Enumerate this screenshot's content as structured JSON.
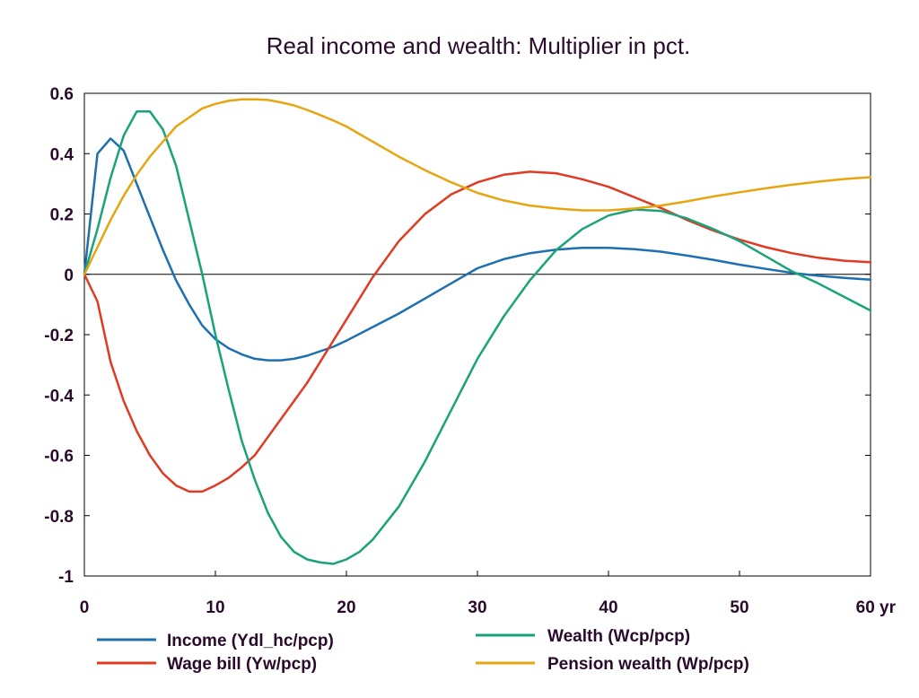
{
  "chart_data": {
    "type": "line",
    "title": "Real income and wealth: Multiplier in pct.",
    "xlabel": "",
    "ylabel": "",
    "x_unit_label": "yr",
    "xlim": [
      0,
      60
    ],
    "ylim": [
      -1,
      0.6
    ],
    "x_ticks": [
      0,
      10,
      20,
      30,
      40,
      50,
      60
    ],
    "x_tick_labels": [
      "0",
      "10",
      "20",
      "30",
      "40",
      "50",
      "60 yr"
    ],
    "y_ticks": [
      -1,
      -0.8,
      -0.6,
      -0.4,
      -0.2,
      0,
      0.2,
      0.4,
      0.6
    ],
    "y_tick_labels": [
      "-1",
      "-0.8",
      "-0.6",
      "-0.4",
      "-0.2",
      "0",
      "0.2",
      "0.4",
      "0.6"
    ],
    "grid": false,
    "zero_line": true,
    "legend_position": "bottom",
    "series": [
      {
        "name": "Income (Ydl_hc/pcp)",
        "color": "#1f6fb0",
        "points": [
          [
            0,
            0
          ],
          [
            1,
            0.4
          ],
          [
            2,
            0.45
          ],
          [
            3,
            0.41
          ],
          [
            4,
            0.3
          ],
          [
            5,
            0.19
          ],
          [
            6,
            0.08
          ],
          [
            7,
            -0.02
          ],
          [
            8,
            -0.1
          ],
          [
            9,
            -0.17
          ],
          [
            10,
            -0.215
          ],
          [
            11,
            -0.245
          ],
          [
            12,
            -0.265
          ],
          [
            13,
            -0.28
          ],
          [
            14,
            -0.285
          ],
          [
            15,
            -0.285
          ],
          [
            16,
            -0.28
          ],
          [
            17,
            -0.27
          ],
          [
            18,
            -0.255
          ],
          [
            19,
            -0.24
          ],
          [
            20,
            -0.22
          ],
          [
            22,
            -0.175
          ],
          [
            24,
            -0.13
          ],
          [
            26,
            -0.08
          ],
          [
            28,
            -0.03
          ],
          [
            30,
            0.02
          ],
          [
            32,
            0.05
          ],
          [
            34,
            0.07
          ],
          [
            36,
            0.082
          ],
          [
            38,
            0.088
          ],
          [
            40,
            0.088
          ],
          [
            42,
            0.083
          ],
          [
            44,
            0.075
          ],
          [
            46,
            0.062
          ],
          [
            48,
            0.048
          ],
          [
            50,
            0.032
          ],
          [
            52,
            0.018
          ],
          [
            54,
            0.005
          ],
          [
            56,
            -0.005
          ],
          [
            58,
            -0.012
          ],
          [
            60,
            -0.018
          ]
        ]
      },
      {
        "name": "Wage bill (Yw/pcp)",
        "color": "#e03a23",
        "points": [
          [
            0,
            0
          ],
          [
            1,
            -0.09
          ],
          [
            2,
            -0.29
          ],
          [
            3,
            -0.42
          ],
          [
            4,
            -0.52
          ],
          [
            5,
            -0.6
          ],
          [
            6,
            -0.66
          ],
          [
            7,
            -0.7
          ],
          [
            8,
            -0.72
          ],
          [
            9,
            -0.72
          ],
          [
            10,
            -0.7
          ],
          [
            11,
            -0.675
          ],
          [
            12,
            -0.64
          ],
          [
            13,
            -0.6
          ],
          [
            14,
            -0.54
          ],
          [
            15,
            -0.48
          ],
          [
            16,
            -0.42
          ],
          [
            17,
            -0.36
          ],
          [
            18,
            -0.29
          ],
          [
            19,
            -0.22
          ],
          [
            20,
            -0.15
          ],
          [
            22,
            -0.01
          ],
          [
            24,
            0.11
          ],
          [
            26,
            0.2
          ],
          [
            28,
            0.265
          ],
          [
            30,
            0.305
          ],
          [
            32,
            0.33
          ],
          [
            34,
            0.34
          ],
          [
            36,
            0.335
          ],
          [
            38,
            0.315
          ],
          [
            40,
            0.29
          ],
          [
            42,
            0.255
          ],
          [
            44,
            0.22
          ],
          [
            46,
            0.18
          ],
          [
            48,
            0.145
          ],
          [
            50,
            0.115
          ],
          [
            52,
            0.09
          ],
          [
            54,
            0.07
          ],
          [
            56,
            0.055
          ],
          [
            58,
            0.045
          ],
          [
            60,
            0.04
          ]
        ]
      },
      {
        "name": "Wealth (Wcp/pcp)",
        "color": "#1aa37a",
        "points": [
          [
            0,
            0
          ],
          [
            1,
            0.15
          ],
          [
            2,
            0.32
          ],
          [
            3,
            0.46
          ],
          [
            4,
            0.54
          ],
          [
            5,
            0.54
          ],
          [
            6,
            0.48
          ],
          [
            7,
            0.36
          ],
          [
            8,
            0.18
          ],
          [
            9,
            0.0
          ],
          [
            10,
            -0.2
          ],
          [
            11,
            -0.38
          ],
          [
            12,
            -0.55
          ],
          [
            13,
            -0.68
          ],
          [
            14,
            -0.79
          ],
          [
            15,
            -0.87
          ],
          [
            16,
            -0.92
          ],
          [
            17,
            -0.945
          ],
          [
            18,
            -0.955
          ],
          [
            19,
            -0.96
          ],
          [
            20,
            -0.945
          ],
          [
            21,
            -0.92
          ],
          [
            22,
            -0.88
          ],
          [
            24,
            -0.77
          ],
          [
            26,
            -0.62
          ],
          [
            28,
            -0.45
          ],
          [
            30,
            -0.28
          ],
          [
            32,
            -0.14
          ],
          [
            34,
            -0.02
          ],
          [
            36,
            0.08
          ],
          [
            38,
            0.15
          ],
          [
            40,
            0.195
          ],
          [
            42,
            0.215
          ],
          [
            44,
            0.21
          ],
          [
            46,
            0.185
          ],
          [
            48,
            0.15
          ],
          [
            50,
            0.11
          ],
          [
            52,
            0.06
          ],
          [
            54,
            0.01
          ],
          [
            56,
            -0.03
          ],
          [
            58,
            -0.075
          ],
          [
            60,
            -0.12
          ]
        ]
      },
      {
        "name": "Pension wealth (Wp/pcp)",
        "color": "#e6a511",
        "points": [
          [
            0,
            0
          ],
          [
            1,
            0.09
          ],
          [
            2,
            0.18
          ],
          [
            3,
            0.26
          ],
          [
            4,
            0.33
          ],
          [
            5,
            0.39
          ],
          [
            6,
            0.44
          ],
          [
            7,
            0.49
          ],
          [
            8,
            0.52
          ],
          [
            9,
            0.55
          ],
          [
            10,
            0.565
          ],
          [
            11,
            0.575
          ],
          [
            12,
            0.58
          ],
          [
            13,
            0.58
          ],
          [
            14,
            0.578
          ],
          [
            15,
            0.57
          ],
          [
            16,
            0.56
          ],
          [
            17,
            0.545
          ],
          [
            18,
            0.528
          ],
          [
            19,
            0.51
          ],
          [
            20,
            0.49
          ],
          [
            22,
            0.44
          ],
          [
            24,
            0.39
          ],
          [
            26,
            0.345
          ],
          [
            28,
            0.305
          ],
          [
            30,
            0.27
          ],
          [
            32,
            0.245
          ],
          [
            34,
            0.228
          ],
          [
            36,
            0.218
          ],
          [
            38,
            0.212
          ],
          [
            40,
            0.212
          ],
          [
            42,
            0.218
          ],
          [
            44,
            0.228
          ],
          [
            46,
            0.242
          ],
          [
            48,
            0.258
          ],
          [
            50,
            0.272
          ],
          [
            52,
            0.285
          ],
          [
            54,
            0.297
          ],
          [
            56,
            0.307
          ],
          [
            58,
            0.316
          ],
          [
            60,
            0.322
          ]
        ]
      }
    ]
  }
}
